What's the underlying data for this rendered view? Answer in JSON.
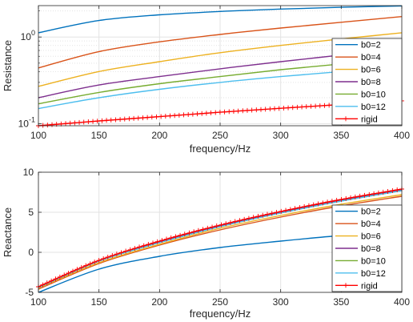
{
  "chart_data": [
    {
      "type": "line",
      "xlabel": "frequency/Hz",
      "ylabel": "Resistance",
      "yscale": "log",
      "xlim": [
        100,
        400
      ],
      "ylim": [
        0.095,
        2.3
      ],
      "grid": true,
      "legend_position": "bottom-right",
      "x_ticks": [
        "100",
        "150",
        "200",
        "250",
        "300",
        "350",
        "400"
      ],
      "y_ticks": [
        {
          "value": 0.1,
          "base": "10",
          "exp": "-1"
        },
        {
          "value": 1,
          "base": "10",
          "exp": "0"
        }
      ],
      "x": [
        100,
        150,
        200,
        250,
        300,
        350,
        400
      ],
      "series": [
        {
          "name": "b0=2",
          "color": "#0072BD",
          "values": [
            1.12,
            1.55,
            1.8,
            1.97,
            2.1,
            2.2,
            2.28
          ]
        },
        {
          "name": "b0=4",
          "color": "#D95319",
          "values": [
            0.44,
            0.68,
            0.88,
            1.07,
            1.27,
            1.48,
            1.72
          ]
        },
        {
          "name": "b0=6",
          "color": "#EDB120",
          "values": [
            0.27,
            0.4,
            0.52,
            0.66,
            0.8,
            0.95,
            1.12
          ]
        },
        {
          "name": "b0=8",
          "color": "#7E2F8E",
          "values": [
            0.2,
            0.28,
            0.35,
            0.43,
            0.52,
            0.62,
            0.74
          ]
        },
        {
          "name": "b0=10",
          "color": "#77AC30",
          "values": [
            0.17,
            0.23,
            0.29,
            0.35,
            0.42,
            0.49,
            0.57
          ]
        },
        {
          "name": "b0=12",
          "color": "#4DBEEE",
          "values": [
            0.15,
            0.2,
            0.25,
            0.3,
            0.35,
            0.4,
            0.45
          ]
        },
        {
          "name": "rigid",
          "color": "#FF0000",
          "marker": "+",
          "values": [
            0.095,
            0.108,
            0.121,
            0.136,
            0.151,
            0.167,
            0.184
          ]
        }
      ]
    },
    {
      "type": "line",
      "xlabel": "frequency/Hz",
      "ylabel": "Reactance",
      "xlim": [
        100,
        400
      ],
      "ylim": [
        -5,
        10
      ],
      "grid": true,
      "legend_position": "bottom-right",
      "x_ticks": [
        "100",
        "150",
        "200",
        "250",
        "300",
        "350",
        "400"
      ],
      "y_ticks": [
        "-5",
        "0",
        "5",
        "10"
      ],
      "x": [
        100,
        150,
        200,
        250,
        300,
        350,
        400
      ],
      "series": [
        {
          "name": "b0=2",
          "color": "#0072BD",
          "values": [
            -5.0,
            -2.1,
            -0.5,
            0.6,
            1.4,
            2.1,
            2.6
          ]
        },
        {
          "name": "b0=4",
          "color": "#D95319",
          "values": [
            -4.6,
            -1.4,
            0.9,
            2.8,
            4.4,
            5.8,
            7.0
          ]
        },
        {
          "name": "b0=6",
          "color": "#EDB120",
          "values": [
            -4.5,
            -1.3,
            1.0,
            3.0,
            4.6,
            6.0,
            7.2
          ]
        },
        {
          "name": "b0=8",
          "color": "#7E2F8E",
          "values": [
            -4.4,
            -1.1,
            1.3,
            3.3,
            5.0,
            6.5,
            7.8
          ]
        },
        {
          "name": "b0=10",
          "color": "#77AC30",
          "values": [
            -4.4,
            -1.1,
            1.2,
            3.2,
            4.9,
            6.4,
            7.7
          ]
        },
        {
          "name": "b0=12",
          "color": "#4DBEEE",
          "values": [
            -4.4,
            -1.1,
            1.2,
            3.2,
            4.9,
            6.4,
            7.7
          ]
        },
        {
          "name": "rigid",
          "color": "#FF0000",
          "marker": "+",
          "values": [
            -4.3,
            -1.0,
            1.4,
            3.4,
            5.1,
            6.6,
            7.9
          ]
        }
      ]
    }
  ]
}
